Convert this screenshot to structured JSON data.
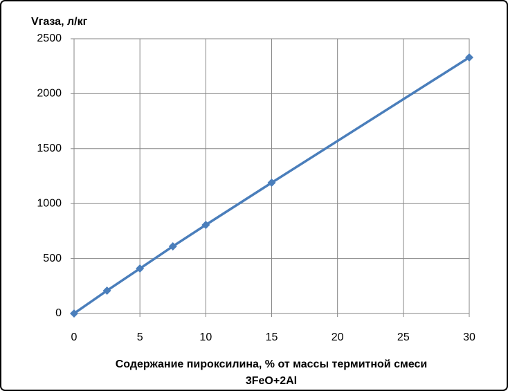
{
  "chart_data": {
    "type": "line",
    "y_label": "Vгаза, л/кг",
    "x_label": [
      "Содержание пироксилина, % от массы термитной смеси",
      "3FeO+2Al"
    ],
    "x": [
      0,
      2.5,
      5,
      7.5,
      10,
      15,
      30
    ],
    "series": [
      {
        "name": "Vгаза",
        "color": "#4a7ebb",
        "values": [
          0,
          208,
          409,
          611,
          806,
          1190,
          2330
        ]
      }
    ],
    "xlim": [
      0,
      30
    ],
    "xticks": [
      0,
      5,
      10,
      15,
      20,
      25,
      30
    ],
    "ylim": [
      0,
      2500
    ],
    "yticks": [
      0,
      500,
      1000,
      1500,
      2000,
      2500
    ],
    "grid": true,
    "legend": false
  }
}
